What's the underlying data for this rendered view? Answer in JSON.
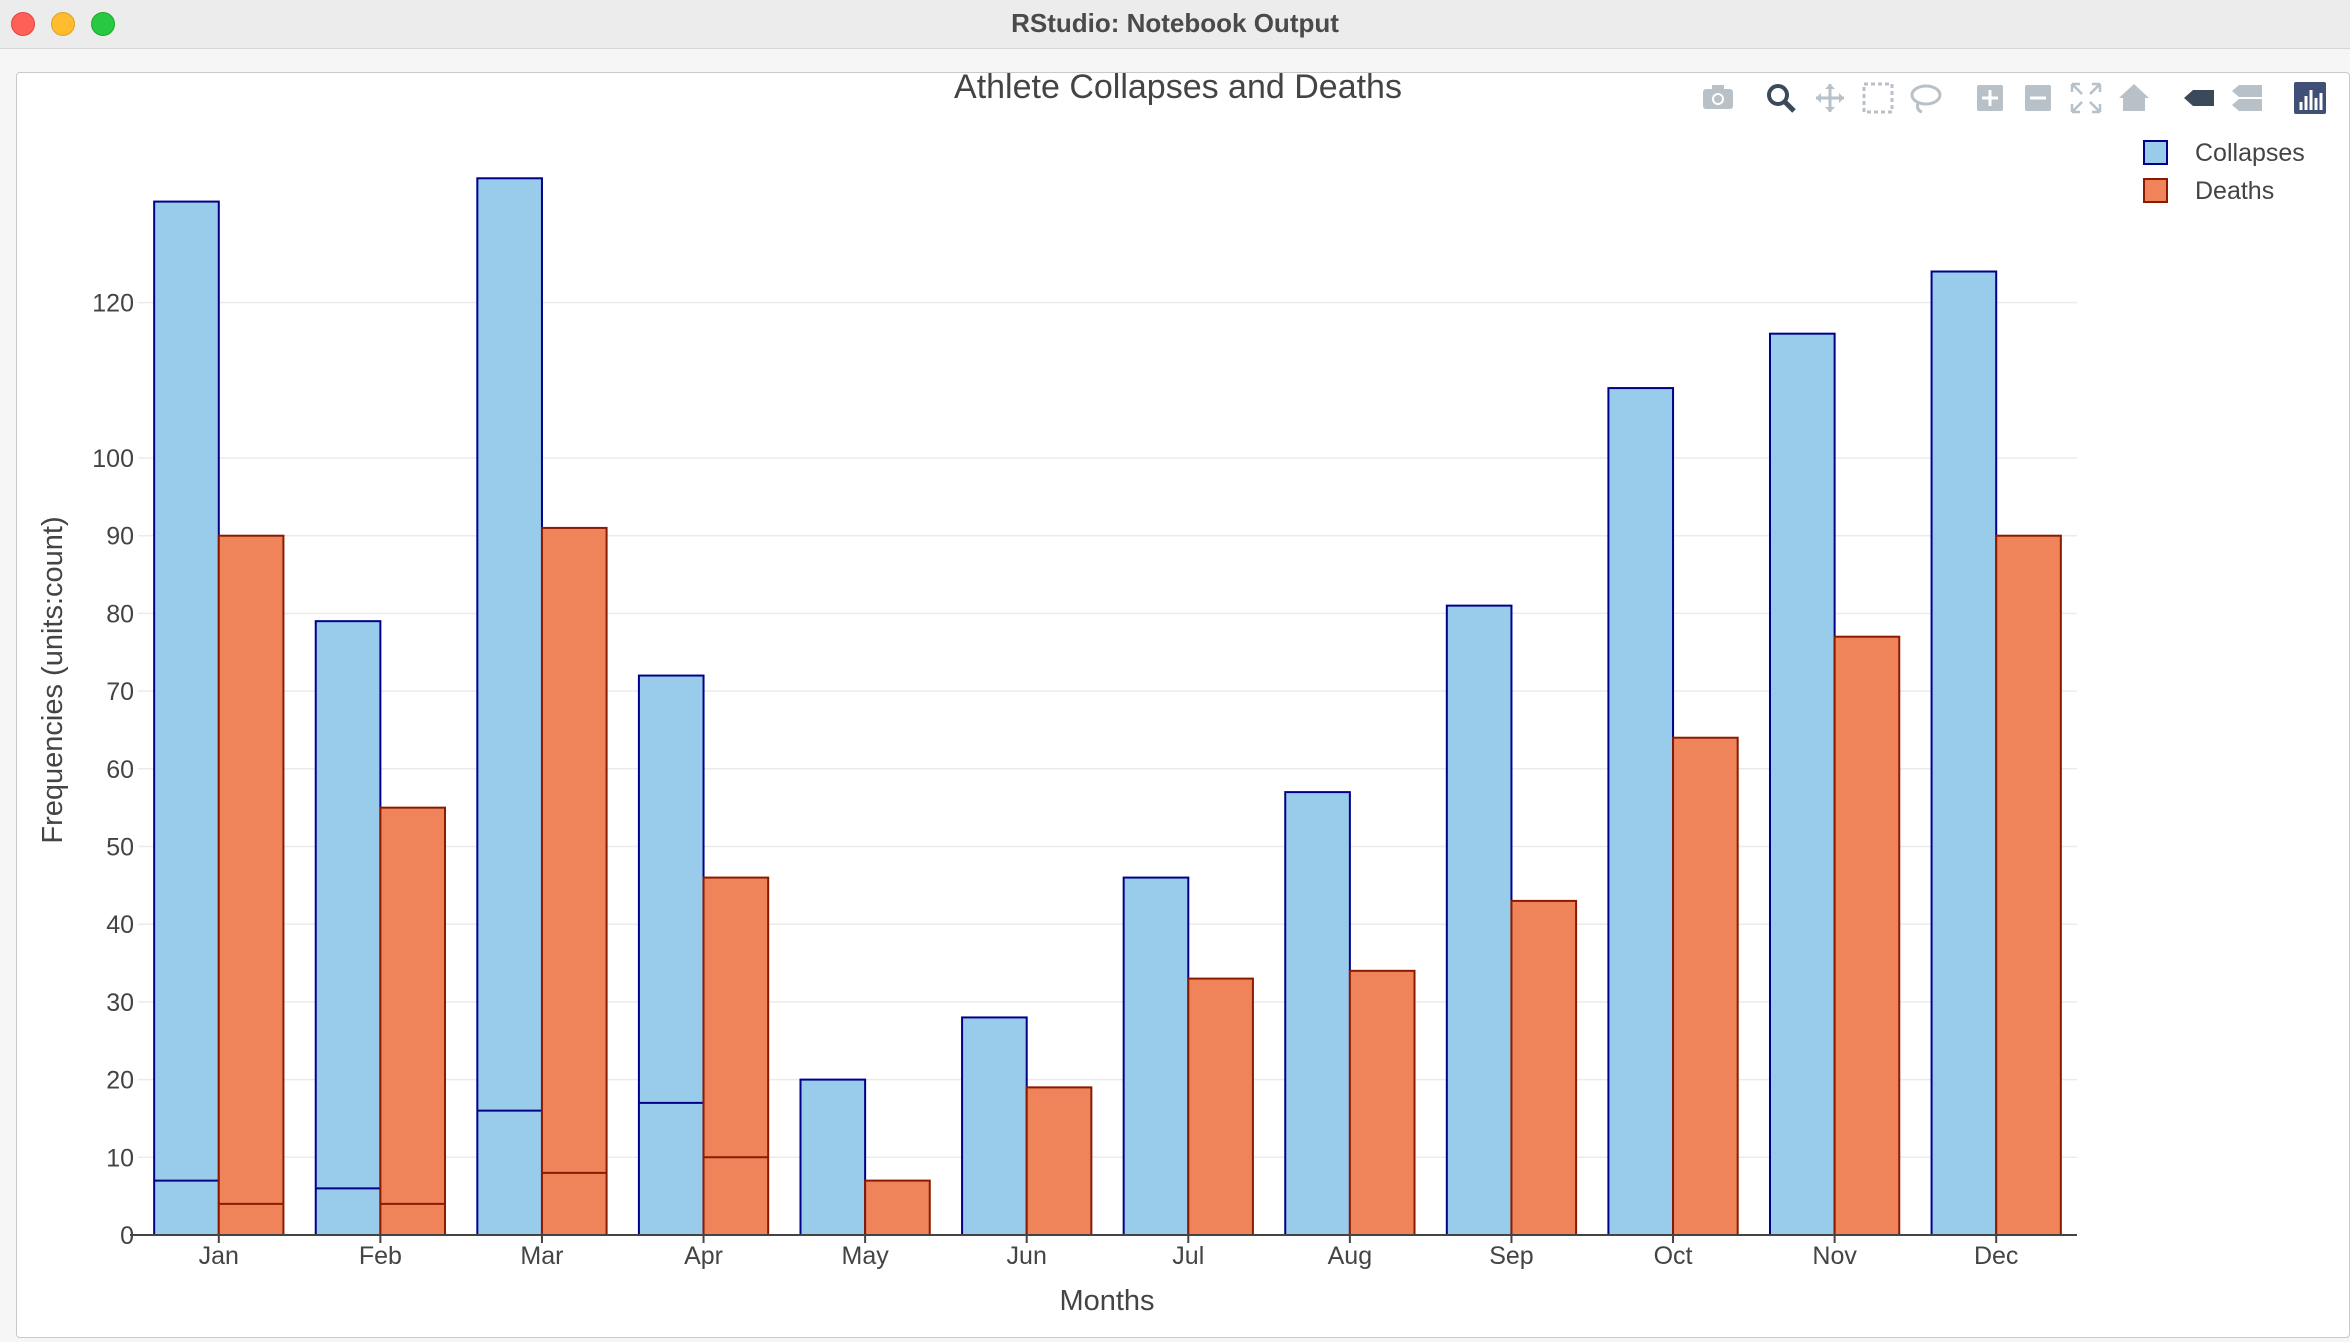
{
  "window": {
    "title": "RStudio: Notebook Output"
  },
  "modebar": {
    "icons": [
      "camera-icon",
      "zoom-icon",
      "pan-icon",
      "box-select-icon",
      "lasso-select-icon",
      "zoom-in-icon",
      "zoom-out-icon",
      "autoscale-icon",
      "reset-axes-icon",
      "hover-closest-icon",
      "hover-compare-icon",
      "plotly-logo-icon"
    ]
  },
  "colors": {
    "collapses_fill": "#99cbea",
    "collapses_line": "#00008b",
    "deaths_fill": "#ef845b",
    "deaths_line": "#8b1a00",
    "grid": "#ebebeb",
    "text": "#444444"
  },
  "chart_data": {
    "type": "bar",
    "title": "Athlete Collapses and Deaths",
    "xlabel": "Months",
    "ylabel": "Frequencies (units:count)",
    "categories": [
      "Jan",
      "Feb",
      "Mar",
      "Apr",
      "May",
      "Jun",
      "Jul",
      "Aug",
      "Sep",
      "Oct",
      "Nov",
      "Dec"
    ],
    "yticks": [
      0,
      10,
      20,
      30,
      40,
      50,
      60,
      70,
      80,
      90,
      100,
      120
    ],
    "ylim": [
      0,
      135
    ],
    "grid": true,
    "legend_position": "top-right",
    "series": [
      {
        "name": "Collapses",
        "values": [
          133,
          79,
          136,
          72,
          20,
          28,
          46,
          57,
          81,
          109,
          116,
          124
        ],
        "inner_segment": [
          7,
          6,
          16,
          17,
          null,
          null,
          null,
          null,
          null,
          null,
          null,
          null
        ]
      },
      {
        "name": "Deaths",
        "values": [
          90,
          55,
          91,
          46,
          7,
          19,
          33,
          34,
          43,
          64,
          77,
          90
        ],
        "inner_segment": [
          4,
          4,
          8,
          10,
          null,
          null,
          null,
          null,
          null,
          null,
          null,
          null
        ]
      }
    ]
  }
}
